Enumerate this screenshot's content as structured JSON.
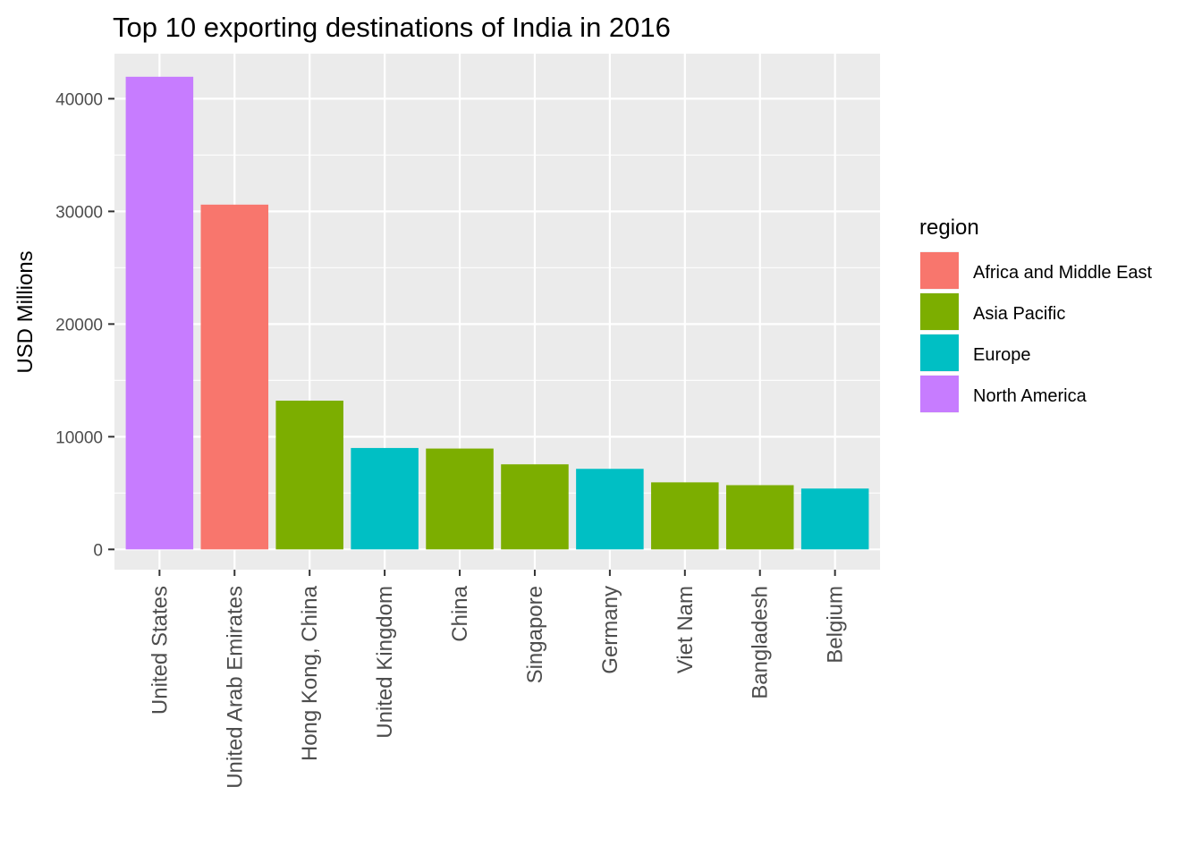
{
  "chart_data": {
    "type": "bar",
    "title": "Top 10 exporting destinations of India in 2016",
    "xlabel": "",
    "ylabel": "USD Millions",
    "categories": [
      "United States",
      "United Arab Emirates",
      "Hong Kong, China",
      "United Kingdom",
      "China",
      "Singapore",
      "Germany",
      "Viet Nam",
      "Bangladesh",
      "Belgium"
    ],
    "values": [
      41950,
      30600,
      13200,
      9000,
      8950,
      7550,
      7150,
      5950,
      5700,
      5400
    ],
    "regions": [
      "North America",
      "Africa and Middle East",
      "Asia Pacific",
      "Europe",
      "Asia Pacific",
      "Asia Pacific",
      "Europe",
      "Asia Pacific",
      "Asia Pacific",
      "Europe"
    ],
    "ylim": [
      -1800,
      44000
    ],
    "yticks": [
      0,
      10000,
      20000,
      30000,
      40000
    ],
    "grid": true,
    "legend": {
      "title": "region",
      "position": "right",
      "entries": [
        {
          "label": "Africa and Middle East",
          "color": "#F8766D"
        },
        {
          "label": "Asia Pacific",
          "color": "#7CAE00"
        },
        {
          "label": "Europe",
          "color": "#00BFC4"
        },
        {
          "label": "North America",
          "color": "#C77CFF"
        }
      ]
    },
    "colors": {
      "panel_background": "#EBEBEB",
      "grid": "#FFFFFF",
      "tick_text": "#4D4D4D",
      "title_text": "#000000"
    }
  }
}
